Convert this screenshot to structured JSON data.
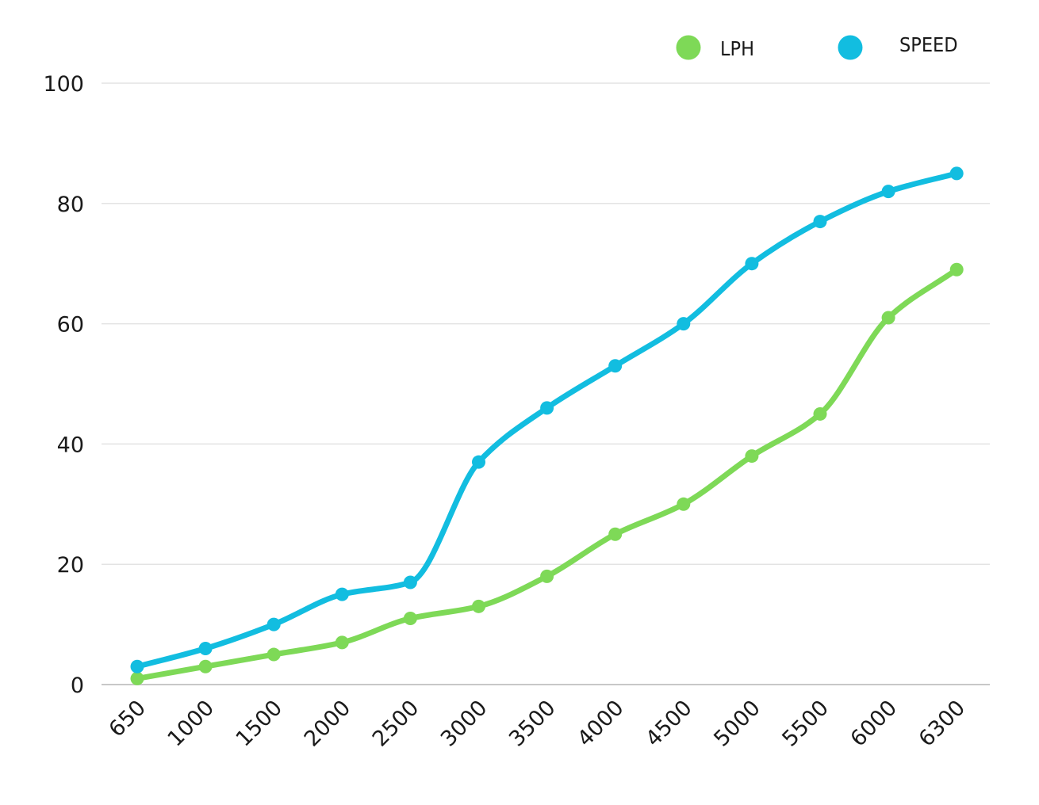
{
  "chart_data": {
    "type": "line",
    "categories": [
      "650",
      "1000",
      "1500",
      "2000",
      "2500",
      "3000",
      "3500",
      "4000",
      "4500",
      "5000",
      "5500",
      "6000",
      "6300"
    ],
    "series": [
      {
        "name": "LPH",
        "color": "#7ed957",
        "values": [
          1,
          3,
          5,
          7,
          11,
          13,
          18,
          25,
          30,
          38,
          45,
          61,
          69
        ]
      },
      {
        "name": "SPEED",
        "color": "#12bde0",
        "values": [
          3,
          6,
          10,
          15,
          17,
          37,
          46,
          53,
          60,
          70,
          77,
          82,
          85
        ]
      }
    ],
    "y_ticks": [
      "0",
      "20",
      "40",
      "60",
      "80",
      "100"
    ],
    "ylim": [
      0,
      100
    ],
    "title": "",
    "xlabel": "",
    "ylabel": "",
    "grid": true,
    "legend_position": "top-right",
    "gridline_color": "#e3e3e3",
    "axis_color": "#c8c8c8"
  }
}
